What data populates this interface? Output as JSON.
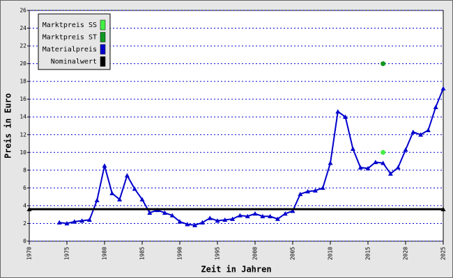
{
  "chart_data": {
    "type": "line",
    "xlabel": "Zeit in Jahren",
    "ylabel": "Preis in Euro",
    "xlim": [
      1970,
      2025
    ],
    "xticks": [
      1970,
      1975,
      1980,
      1985,
      1990,
      1995,
      2000,
      2005,
      2010,
      2015,
      2020,
      2025
    ],
    "ylim": [
      0,
      26
    ],
    "yticks": [
      0,
      2,
      4,
      6,
      8,
      10,
      12,
      14,
      16,
      18,
      20,
      22,
      24,
      26
    ],
    "grid": true,
    "legend": "upper left",
    "series": [
      {
        "name": "Marktpreis SS",
        "color": "#44ee44",
        "mode": "markers",
        "x": [
          2017
        ],
        "values": [
          10.0
        ]
      },
      {
        "name": "Marktpreis ST",
        "color": "#119922",
        "mode": "markers",
        "x": [
          2017
        ],
        "values": [
          20.0
        ]
      },
      {
        "name": "Materialpreis",
        "color": "#0000cc",
        "mode": "lines+markers",
        "x": [
          1974,
          1975,
          1976,
          1977,
          1978,
          1979,
          1980,
          1981,
          1982,
          1983,
          1984,
          1985,
          1986,
          1987,
          1988,
          1989,
          1990,
          1991,
          1992,
          1993,
          1994,
          1995,
          1996,
          1997,
          1998,
          1999,
          2000,
          2001,
          2002,
          2003,
          2004,
          2005,
          2006,
          2007,
          2008,
          2009,
          2010,
          2011,
          2012,
          2013,
          2014,
          2015,
          2016,
          2017,
          2018,
          2019,
          2020,
          2021,
          2022,
          2023,
          2024,
          2025
        ],
        "values": [
          2.1,
          2.0,
          2.2,
          2.3,
          2.4,
          4.6,
          8.5,
          5.4,
          4.7,
          7.4,
          5.9,
          4.7,
          3.2,
          3.5,
          3.2,
          2.9,
          2.2,
          1.9,
          1.8,
          2.1,
          2.6,
          2.3,
          2.4,
          2.5,
          2.9,
          2.8,
          3.1,
          2.8,
          2.8,
          2.5,
          3.1,
          3.4,
          5.3,
          5.6,
          5.7,
          6.0,
          8.8,
          14.6,
          14.0,
          10.4,
          8.3,
          8.2,
          8.9,
          8.8,
          7.6,
          8.3,
          10.3,
          12.3,
          12.0,
          12.5,
          15.1,
          17.2
        ]
      },
      {
        "name": "Nominalwert",
        "color": "#000000",
        "mode": "lines+markers",
        "x": [
          1970,
          2025
        ],
        "values": [
          3.6,
          3.6
        ]
      }
    ]
  }
}
